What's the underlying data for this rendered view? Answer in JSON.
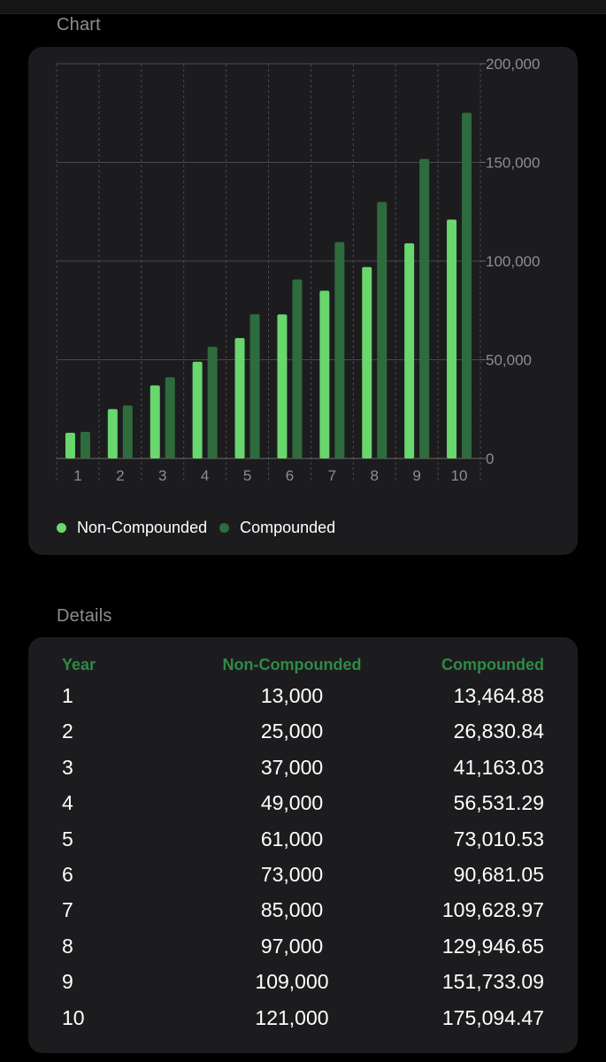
{
  "sections": {
    "chart_title": "Chart",
    "details_title": "Details"
  },
  "colors": {
    "non_compounded": "#69d66e",
    "compounded": "#2e6b3d",
    "header_text": "#2f8a45",
    "card_background": "#1c1c1e"
  },
  "chart_data": {
    "type": "bar",
    "categories": [
      "1",
      "2",
      "3",
      "4",
      "5",
      "6",
      "7",
      "8",
      "9",
      "10"
    ],
    "series": [
      {
        "name": "Non-Compounded",
        "values": [
          13000,
          25000,
          37000,
          49000,
          61000,
          73000,
          85000,
          97000,
          109000,
          121000
        ]
      },
      {
        "name": "Compounded",
        "values": [
          13464.88,
          26830.84,
          41163.03,
          56531.29,
          73010.53,
          90681.05,
          109628.97,
          129946.65,
          151733.09,
          175094.47
        ]
      }
    ],
    "ylim": [
      0,
      200000
    ],
    "y_ticks": [
      0,
      50000,
      100000,
      150000,
      200000
    ],
    "y_tick_labels": [
      "0",
      "50,000",
      "100,000",
      "150,000",
      "200,000"
    ],
    "y_axis_position": "right",
    "grid": true,
    "legend_position": "bottom-left"
  },
  "legend": {
    "items": [
      {
        "label": "Non-Compounded"
      },
      {
        "label": "Compounded"
      }
    ]
  },
  "details": {
    "columns": {
      "year": "Year",
      "non_compounded": "Non-Compounded",
      "compounded": "Compounded"
    },
    "rows": [
      {
        "year": "1",
        "non_compounded": "13,000",
        "compounded": "13,464.88"
      },
      {
        "year": "2",
        "non_compounded": "25,000",
        "compounded": "26,830.84"
      },
      {
        "year": "3",
        "non_compounded": "37,000",
        "compounded": "41,163.03"
      },
      {
        "year": "4",
        "non_compounded": "49,000",
        "compounded": "56,531.29"
      },
      {
        "year": "5",
        "non_compounded": "61,000",
        "compounded": "73,010.53"
      },
      {
        "year": "6",
        "non_compounded": "73,000",
        "compounded": "90,681.05"
      },
      {
        "year": "7",
        "non_compounded": "85,000",
        "compounded": "109,628.97"
      },
      {
        "year": "8",
        "non_compounded": "97,000",
        "compounded": "129,946.65"
      },
      {
        "year": "9",
        "non_compounded": "109,000",
        "compounded": "151,733.09"
      },
      {
        "year": "10",
        "non_compounded": "121,000",
        "compounded": "175,094.47"
      }
    ]
  }
}
